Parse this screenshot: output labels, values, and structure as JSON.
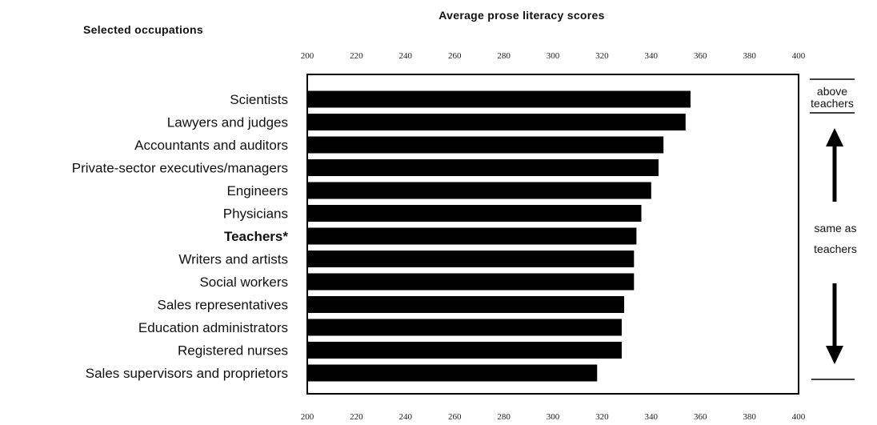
{
  "chart_data": {
    "type": "bar",
    "orientation": "horizontal",
    "title": "Average prose literacy scores",
    "category_header": "Selected occupations",
    "categories": [
      "Scientists",
      "Lawyers and judges",
      "Accountants and auditors",
      "Private-sector executives/managers",
      "Engineers",
      "Physicians",
      "Teachers*",
      "Writers and artists",
      "Social workers",
      "Sales representatives",
      "Education administrators",
      "Registered nurses",
      "Sales supervisors and proprietors"
    ],
    "values": [
      356,
      354,
      345,
      343,
      340,
      336,
      334,
      333,
      333,
      329,
      328,
      328,
      318
    ],
    "highlight_category": "Teachers*",
    "xlim": [
      200,
      400
    ],
    "xticks": [
      "200",
      "220",
      "240",
      "260",
      "280",
      "300",
      "320",
      "340",
      "360",
      "380",
      "400"
    ],
    "bar_color": "#000000",
    "grid": false,
    "annotations": {
      "above_line1": "above",
      "above_line2": "teachers",
      "same_line1": "same as",
      "same_line2": "teachers"
    }
  }
}
